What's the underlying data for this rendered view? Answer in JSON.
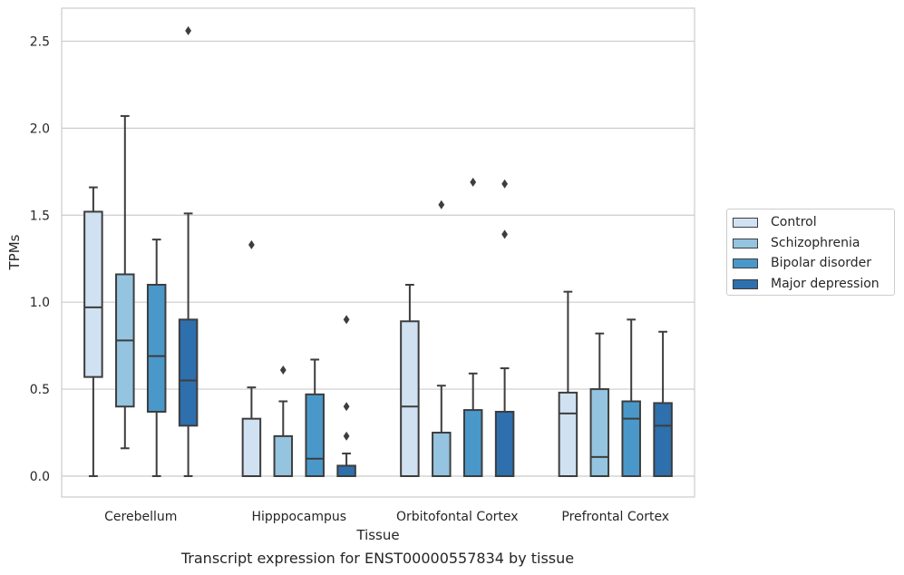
{
  "chart_data": {
    "type": "box",
    "caption": "Transcript expression for ENST00000557834 by tissue",
    "xlabel": "Tissue",
    "ylabel": "TPMs",
    "ylim": [
      -0.12,
      2.69
    ],
    "yticks": [
      "0.0",
      "0.5",
      "1.0",
      "1.5",
      "2.0",
      "2.5"
    ],
    "grid": true,
    "legend_placement": "right",
    "categories": [
      "Cerebellum",
      "Hipppocampus",
      "Orbitofontal Cortex",
      "Prefrontal Cortex"
    ],
    "series": [
      {
        "name": "Control",
        "color": "#d0e1f2",
        "boxes": [
          {
            "whislo": 0.0,
            "q1": 0.57,
            "med": 0.97,
            "q3": 1.52,
            "whishi": 1.66,
            "fliers": []
          },
          {
            "whislo": 0.0,
            "q1": 0.0,
            "med": 0.0,
            "q3": 0.33,
            "whishi": 0.51,
            "fliers": [
              1.33
            ]
          },
          {
            "whislo": 0.0,
            "q1": 0.0,
            "med": 0.4,
            "q3": 0.89,
            "whishi": 1.1,
            "fliers": []
          },
          {
            "whislo": 0.0,
            "q1": 0.0,
            "med": 0.36,
            "q3": 0.48,
            "whishi": 1.06,
            "fliers": []
          }
        ]
      },
      {
        "name": "Schizophrenia",
        "color": "#94c4df",
        "boxes": [
          {
            "whislo": 0.16,
            "q1": 0.4,
            "med": 0.78,
            "q3": 1.16,
            "whishi": 2.07,
            "fliers": []
          },
          {
            "whislo": 0.0,
            "q1": 0.0,
            "med": 0.0,
            "q3": 0.23,
            "whishi": 0.43,
            "fliers": [
              0.61
            ]
          },
          {
            "whislo": 0.0,
            "q1": 0.0,
            "med": 0.0,
            "q3": 0.25,
            "whishi": 0.52,
            "fliers": [
              1.56
            ]
          },
          {
            "whislo": 0.0,
            "q1": 0.0,
            "med": 0.11,
            "q3": 0.5,
            "whishi": 0.82,
            "fliers": []
          }
        ]
      },
      {
        "name": "Bipolar disorder",
        "color": "#4a98c9",
        "boxes": [
          {
            "whislo": 0.0,
            "q1": 0.37,
            "med": 0.69,
            "q3": 1.1,
            "whishi": 1.36,
            "fliers": []
          },
          {
            "whislo": 0.0,
            "q1": 0.0,
            "med": 0.1,
            "q3": 0.47,
            "whishi": 0.67,
            "fliers": []
          },
          {
            "whislo": 0.0,
            "q1": 0.0,
            "med": 0.0,
            "q3": 0.38,
            "whishi": 0.59,
            "fliers": [
              1.69
            ]
          },
          {
            "whislo": 0.0,
            "q1": 0.0,
            "med": 0.33,
            "q3": 0.43,
            "whishi": 0.9,
            "fliers": []
          }
        ]
      },
      {
        "name": "Major depression",
        "color": "#2e6fad",
        "boxes": [
          {
            "whislo": 0.0,
            "q1": 0.29,
            "med": 0.55,
            "q3": 0.9,
            "whishi": 1.51,
            "fliers": [
              2.56
            ]
          },
          {
            "whislo": 0.0,
            "q1": 0.0,
            "med": 0.0,
            "q3": 0.06,
            "whishi": 0.13,
            "fliers": [
              0.23,
              0.4,
              0.9
            ]
          },
          {
            "whislo": 0.0,
            "q1": 0.0,
            "med": 0.0,
            "q3": 0.37,
            "whishi": 0.62,
            "fliers": [
              1.39,
              1.68
            ]
          },
          {
            "whislo": 0.0,
            "q1": 0.0,
            "med": 0.29,
            "q3": 0.42,
            "whishi": 0.83,
            "fliers": []
          }
        ]
      }
    ]
  }
}
